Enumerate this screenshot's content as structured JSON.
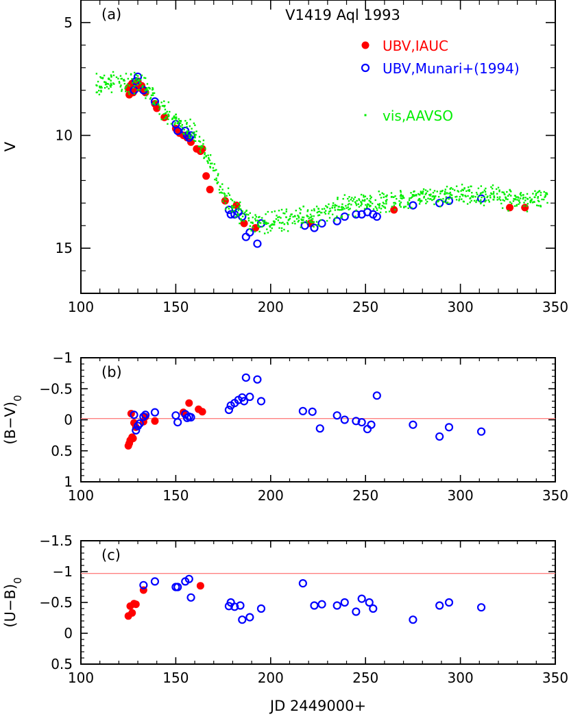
{
  "chart_data": [
    {
      "type": "scatter",
      "panel_tag": "(a)",
      "title": "V1419 Aql 1993",
      "xlabel": "",
      "ylabel": "V",
      "xlim": [
        100,
        350
      ],
      "ylim": [
        17,
        4
      ],
      "y_inverted": true,
      "x_ticks": [
        100,
        150,
        200,
        250,
        300,
        350
      ],
      "x_tick_labels": [
        "100",
        "150",
        "200",
        "250",
        "300",
        "350"
      ],
      "y_ticks": [
        5,
        10,
        15
      ],
      "y_tick_labels": [
        "5",
        "10",
        "15"
      ],
      "legend": [
        {
          "label": "UBV,IAUC",
          "color": "#ff0000",
          "marker": "filled-circle"
        },
        {
          "label": "UBV,Munari+(1994)",
          "color": "#0000ff",
          "marker": "open-circle"
        },
        {
          "label": "vis,AAVSO",
          "color": "#00ee00",
          "marker": "dot"
        }
      ],
      "series": [
        {
          "name": "UBV,IAUC",
          "color": "#ff0000",
          "marker": "filled",
          "points": [
            [
              125,
              7.9
            ],
            [
              125.5,
              8.2
            ],
            [
              126,
              7.8
            ],
            [
              126.5,
              8.0
            ],
            [
              127,
              7.7
            ],
            [
              127.5,
              8.1
            ],
            [
              128,
              7.9
            ],
            [
              128.5,
              7.8
            ],
            [
              129,
              7.7
            ],
            [
              130,
              7.6
            ],
            [
              131,
              7.9
            ],
            [
              132,
              7.8
            ],
            [
              133,
              8.0
            ],
            [
              134,
              8.1
            ],
            [
              139,
              8.6
            ],
            [
              140,
              8.8
            ],
            [
              144,
              9.2
            ],
            [
              150,
              9.7
            ],
            [
              152,
              9.9
            ],
            [
              154,
              10.0
            ],
            [
              156,
              10.1
            ],
            [
              158,
              10.3
            ],
            [
              161,
              10.6
            ],
            [
              163,
              10.7
            ],
            [
              164,
              10.6
            ],
            [
              166,
              11.8
            ],
            [
              168,
              12.4
            ],
            [
              176,
              12.9
            ],
            [
              182,
              13.1
            ],
            [
              186,
              13.9
            ],
            [
              192,
              14.1
            ],
            [
              221,
              13.9
            ],
            [
              265,
              13.3
            ],
            [
              326,
              13.2
            ],
            [
              334,
              13.2
            ]
          ]
        },
        {
          "name": "UBV,Munari+(1994)",
          "color": "#0000ff",
          "marker": "open",
          "points": [
            [
              128,
              8.0
            ],
            [
              129,
              7.6
            ],
            [
              130,
              7.4
            ],
            [
              133,
              8.0
            ],
            [
              139,
              8.5
            ],
            [
              150,
              9.5
            ],
            [
              151,
              9.8
            ],
            [
              155,
              9.8
            ],
            [
              156,
              10.0
            ],
            [
              157,
              10.1
            ],
            [
              158,
              10.0
            ],
            [
              178,
              13.3
            ],
            [
              179,
              13.5
            ],
            [
              181,
              13.5
            ],
            [
              183,
              13.4
            ],
            [
              185,
              13.6
            ],
            [
              187,
              14.5
            ],
            [
              189,
              14.3
            ],
            [
              193,
              14.8
            ],
            [
              195,
              13.9
            ],
            [
              218,
              14.0
            ],
            [
              223,
              14.1
            ],
            [
              227,
              13.9
            ],
            [
              235,
              13.8
            ],
            [
              239,
              13.6
            ],
            [
              245,
              13.5
            ],
            [
              248,
              13.5
            ],
            [
              251,
              13.4
            ],
            [
              254,
              13.5
            ],
            [
              256,
              13.6
            ],
            [
              275,
              13.1
            ],
            [
              289,
              13.0
            ],
            [
              294,
              12.9
            ],
            [
              311,
              12.8
            ]
          ]
        },
        {
          "name": "vis,AAVSO",
          "color": "#00ee00",
          "marker": "dot",
          "trend": [
            [
              107,
              7.8
            ],
            [
              120,
              7.5
            ],
            [
              125,
              7.8
            ],
            [
              130,
              7.6
            ],
            [
              135,
              8.0
            ],
            [
              140,
              8.5
            ],
            [
              145,
              9.0
            ],
            [
              150,
              9.3
            ],
            [
              155,
              9.7
            ],
            [
              160,
              10.0
            ],
            [
              165,
              10.6
            ],
            [
              170,
              11.6
            ],
            [
              175,
              12.6
            ],
            [
              180,
              13.2
            ],
            [
              185,
              13.6
            ],
            [
              190,
              13.8
            ],
            [
              195,
              13.9
            ],
            [
              200,
              13.9
            ],
            [
              205,
              13.8
            ],
            [
              210,
              13.7
            ],
            [
              220,
              13.6
            ],
            [
              230,
              13.4
            ],
            [
              240,
              13.1
            ],
            [
              250,
              12.9
            ],
            [
              260,
              12.9
            ],
            [
              270,
              12.8
            ],
            [
              280,
              12.7
            ],
            [
              290,
              12.7
            ],
            [
              300,
              12.6
            ],
            [
              310,
              12.6
            ],
            [
              320,
              12.7
            ],
            [
              330,
              12.8
            ],
            [
              340,
              12.8
            ],
            [
              346,
              12.8
            ]
          ]
        }
      ]
    },
    {
      "type": "scatter",
      "panel_tag": "(b)",
      "xlabel": "",
      "ylabel": "(B−V)0",
      "xlim": [
        100,
        350
      ],
      "ylim": [
        1,
        -1
      ],
      "y_inverted": true,
      "x_ticks": [
        100,
        150,
        200,
        250,
        300,
        350
      ],
      "x_tick_labels": [
        "100",
        "150",
        "200",
        "250",
        "300",
        "350"
      ],
      "y_ticks": [
        -1,
        -0.5,
        0,
        0.5,
        1
      ],
      "y_tick_labels": [
        "−1",
        "−0.5",
        "0",
        "0.5",
        "1"
      ],
      "reference_line": {
        "y": -0.02,
        "color": "#ff8080"
      },
      "series": [
        {
          "name": "UBV,IAUC",
          "color": "#ff0000",
          "marker": "filled",
          "points": [
            [
              125,
              0.42
            ],
            [
              125.5,
              0.38
            ],
            [
              126,
              0.33
            ],
            [
              126.5,
              -0.1
            ],
            [
              127,
              0.28
            ],
            [
              127.5,
              0.3
            ],
            [
              128,
              0.05
            ],
            [
              129,
              0.12
            ],
            [
              133,
              0.03
            ],
            [
              134,
              -0.05
            ],
            [
              139,
              0.02
            ],
            [
              154,
              -0.12
            ],
            [
              157,
              -0.27
            ],
            [
              162,
              -0.17
            ],
            [
              164,
              -0.13
            ]
          ]
        },
        {
          "name": "UBV,Munari+(1994)",
          "color": "#0000ff",
          "marker": "open",
          "points": [
            [
              128,
              -0.08
            ],
            [
              129,
              0.17
            ],
            [
              130,
              0.1
            ],
            [
              131,
              0.06
            ],
            [
              133,
              -0.05
            ],
            [
              134,
              -0.08
            ],
            [
              139,
              -0.12
            ],
            [
              150,
              -0.07
            ],
            [
              151,
              0.04
            ],
            [
              155,
              -0.09
            ],
            [
              156,
              -0.03
            ],
            [
              157,
              -0.05
            ],
            [
              158,
              -0.04
            ],
            [
              178,
              -0.16
            ],
            [
              179,
              -0.23
            ],
            [
              181,
              -0.27
            ],
            [
              183,
              -0.32
            ],
            [
              185,
              -0.36
            ],
            [
              186,
              -0.3
            ],
            [
              187,
              -0.68
            ],
            [
              189,
              -0.37
            ],
            [
              193,
              -0.65
            ],
            [
              195,
              -0.3
            ],
            [
              217,
              -0.14
            ],
            [
              222,
              -0.13
            ],
            [
              226,
              0.14
            ],
            [
              235,
              -0.07
            ],
            [
              239,
              0.0
            ],
            [
              245,
              0.02
            ],
            [
              248,
              0.04
            ],
            [
              251,
              0.15
            ],
            [
              253,
              0.08
            ],
            [
              256,
              -0.39
            ],
            [
              275,
              0.08
            ],
            [
              289,
              0.27
            ],
            [
              294,
              0.12
            ],
            [
              311,
              0.19
            ]
          ]
        }
      ]
    },
    {
      "type": "scatter",
      "panel_tag": "(c)",
      "xlabel": "JD 2449000+",
      "ylabel": "(U−B)0",
      "xlim": [
        100,
        350
      ],
      "ylim": [
        0.5,
        -1.5
      ],
      "y_inverted": true,
      "x_ticks": [
        100,
        150,
        200,
        250,
        300,
        350
      ],
      "x_tick_labels": [
        "100",
        "150",
        "200",
        "250",
        "300",
        "350"
      ],
      "y_ticks": [
        -1.5,
        -1,
        -0.5,
        0,
        0.5
      ],
      "y_tick_labels": [
        "−1.5",
        "−1",
        "−0.5",
        "0",
        "0.5"
      ],
      "reference_line": {
        "y": -0.97,
        "color": "#ff8080"
      },
      "series": [
        {
          "name": "UBV,IAUC",
          "color": "#ff0000",
          "marker": "filled",
          "points": [
            [
              125,
              -0.28
            ],
            [
              126,
              -0.44
            ],
            [
              127,
              -0.33
            ],
            [
              128,
              -0.48
            ],
            [
              129,
              -0.47
            ],
            [
              133,
              -0.7
            ],
            [
              163,
              -0.77
            ]
          ]
        },
        {
          "name": "UBV,Munari+(1994)",
          "color": "#0000ff",
          "marker": "open",
          "points": [
            [
              133,
              -0.78
            ],
            [
              139,
              -0.84
            ],
            [
              150,
              -0.75
            ],
            [
              151,
              -0.75
            ],
            [
              155,
              -0.84
            ],
            [
              157,
              -0.88
            ],
            [
              158,
              -0.58
            ],
            [
              178,
              -0.44
            ],
            [
              179,
              -0.5
            ],
            [
              181,
              -0.43
            ],
            [
              184,
              -0.45
            ],
            [
              185,
              -0.22
            ],
            [
              189,
              -0.26
            ],
            [
              195,
              -0.4
            ],
            [
              217,
              -0.81
            ],
            [
              223,
              -0.45
            ],
            [
              227,
              -0.47
            ],
            [
              235,
              -0.45
            ],
            [
              239,
              -0.5
            ],
            [
              245,
              -0.35
            ],
            [
              248,
              -0.56
            ],
            [
              252,
              -0.5
            ],
            [
              254,
              -0.4
            ],
            [
              275,
              -0.22
            ],
            [
              289,
              -0.45
            ],
            [
              294,
              -0.5
            ],
            [
              311,
              -0.42
            ]
          ]
        }
      ]
    }
  ]
}
